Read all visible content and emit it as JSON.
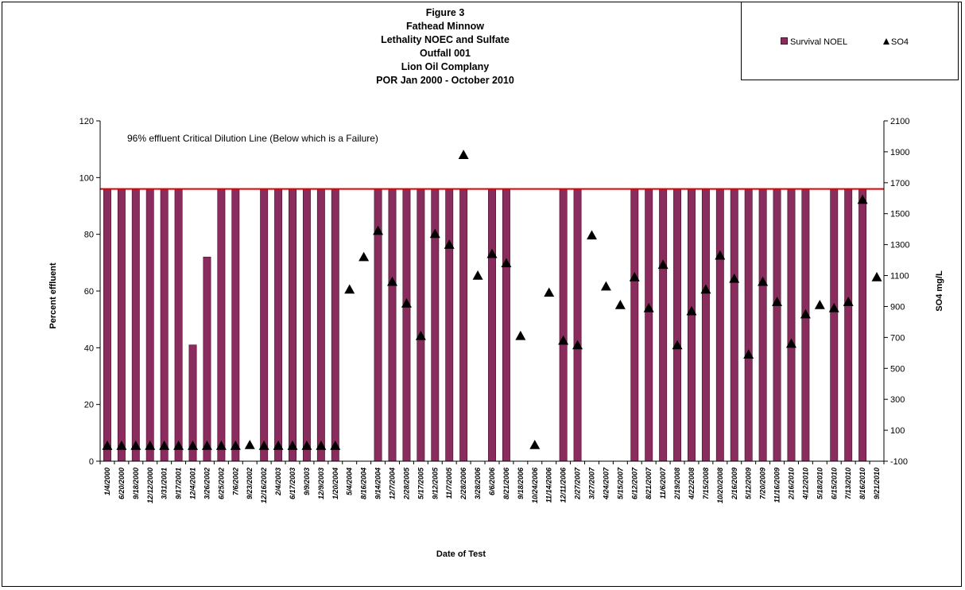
{
  "chart_data": {
    "type": "bar",
    "title_lines": [
      "Figure 3",
      "Fathead  Minnow",
      "Lethality NOEC  and Sulfate",
      "Outfall 001",
      "Lion Oil Complany",
      "POR  Jan 2000 - October 2010"
    ],
    "xlabel": "Date of Test",
    "ylabel_left": "Percent effluent",
    "ylabel_right": "SO4 mg/L",
    "ylim_left": [
      0,
      120
    ],
    "yticks_left": [
      0,
      20,
      40,
      60,
      80,
      100,
      120
    ],
    "ylim_right": [
      -100,
      2100
    ],
    "yticks_right": [
      -100,
      100,
      300,
      500,
      700,
      900,
      1100,
      1300,
      1500,
      1700,
      1900,
      2100
    ],
    "legend_position": "top-right",
    "grid": false,
    "reference_line": {
      "value": 96,
      "color": "#e00000",
      "label": "96% effluent Critical Dilution Line (Below which is a  Failure)"
    },
    "categories": [
      "1/4/2000",
      "6/20/2000",
      "9/18/2000",
      "12/12/2000",
      "3/31/2001",
      "9/17/2001",
      "12/4/2001",
      "3/26/2002",
      "6/25/2002",
      "7/6/2002",
      "9/23/2002",
      "12/16/2002",
      "2/4/2003",
      "6/17/2003",
      "9/9/2003",
      "12/9/2003",
      "1/20/2004",
      "5/4/2004",
      "8/16/2004",
      "9/14/2004",
      "12/7/2004",
      "2/28/2005",
      "5/17/2005",
      "9/12/2005",
      "11/7/2005",
      "2/28/2006",
      "3/28/2006",
      "6/6/2006",
      "8/21/2006",
      "9/18/2006",
      "10/24/2006",
      "11/14/2006",
      "12/11/2006",
      "2/27/2007",
      "3/27/2007",
      "4/24/2007",
      "5/15/2007",
      "6/12/2007",
      "8/21/2007",
      "11/6/2007",
      "2/19/2008",
      "4/22/2008",
      "7/15/2008",
      "10/20/2008",
      "2/16/2009",
      "5/12/2009",
      "7/20/2009",
      "11/16/2009",
      "2/16/2010",
      "4/12/2010",
      "5/18/2010",
      "6/15/2010",
      "7/13/2010",
      "8/16/2010",
      "9/21/2010"
    ],
    "series": [
      {
        "name": "Survival NOEL",
        "kind": "bar",
        "axis": "left",
        "color": "#8b2c5f",
        "values": [
          96,
          96,
          96,
          96,
          96,
          96,
          41,
          72,
          96,
          96,
          null,
          96,
          96,
          96,
          96,
          96,
          96,
          null,
          null,
          96,
          96,
          96,
          96,
          96,
          96,
          96,
          null,
          96,
          96,
          null,
          null,
          null,
          96,
          96,
          null,
          null,
          null,
          96,
          96,
          96,
          96,
          96,
          96,
          96,
          96,
          96,
          96,
          96,
          96,
          96,
          null,
          96,
          96,
          96,
          null
        ]
      },
      {
        "name": "SO4",
        "kind": "marker",
        "axis": "right",
        "color": "#000000",
        "values": [
          0,
          0,
          0,
          0,
          0,
          0,
          0,
          0,
          0,
          0,
          5,
          0,
          0,
          0,
          0,
          0,
          0,
          1010,
          1220,
          1390,
          1060,
          920,
          710,
          1370,
          1300,
          1880,
          1100,
          1240,
          1180,
          710,
          5,
          990,
          680,
          650,
          1360,
          1030,
          910,
          1090,
          890,
          1170,
          650,
          870,
          1010,
          1230,
          1080,
          590,
          1060,
          930,
          660,
          850,
          910,
          890,
          930,
          1590,
          1090
        ]
      }
    ]
  }
}
